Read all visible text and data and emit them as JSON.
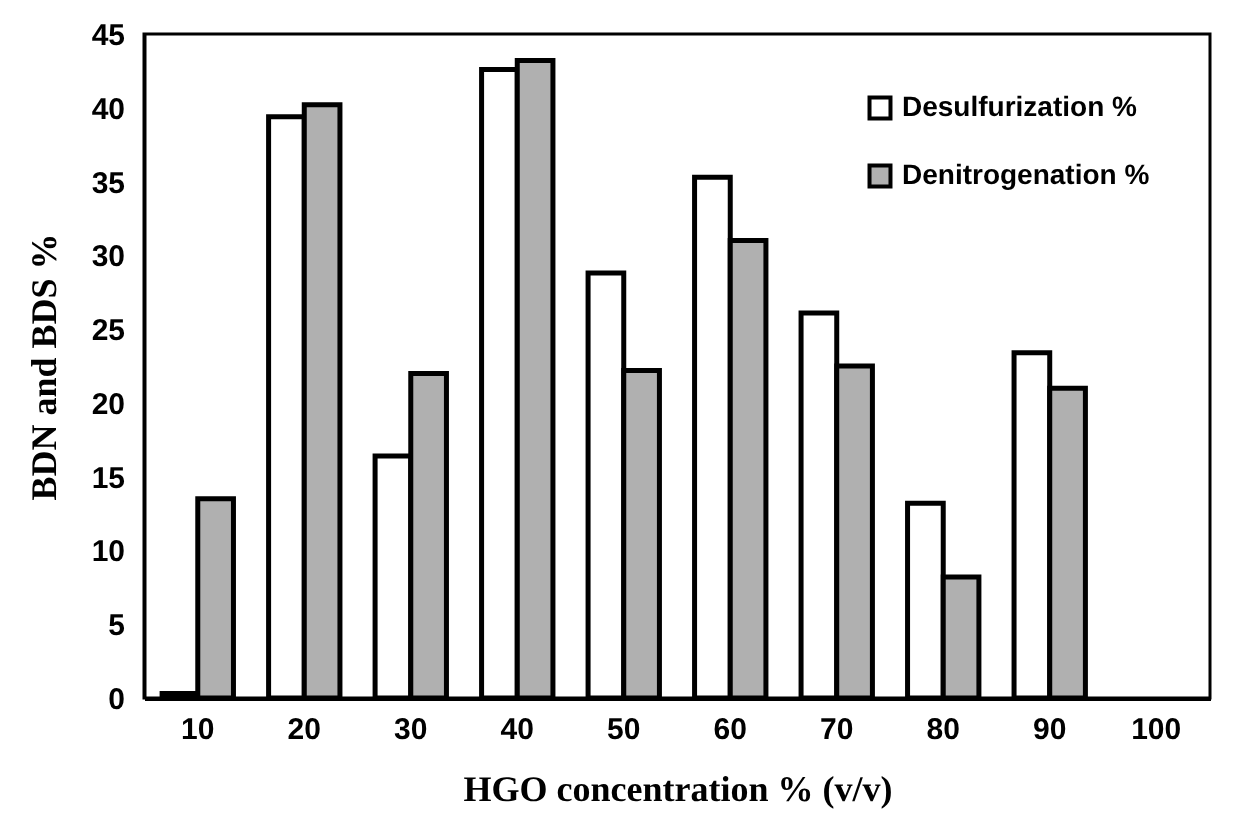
{
  "chart_data": {
    "type": "bar",
    "xlabel": "HGO concentration % (v/v)",
    "ylabel": "BDN and BDS %",
    "categories": [
      "10",
      "20",
      "30",
      "40",
      "50",
      "60",
      "70",
      "80",
      "90",
      "100"
    ],
    "series": [
      {
        "name": "Desulfurization %",
        "color": "#ffffff",
        "values": [
          0.3,
          39.4,
          16.4,
          42.6,
          28.8,
          35.3,
          26.1,
          13.2,
          23.4,
          null
        ]
      },
      {
        "name": "Denitrogenation %",
        "color": "#b0b0b0",
        "values": [
          13.5,
          40.2,
          22.0,
          43.2,
          22.2,
          31.0,
          22.5,
          8.2,
          21.0,
          null
        ]
      }
    ],
    "ylim": [
      0,
      45
    ],
    "yticks": [
      0,
      5,
      10,
      15,
      20,
      25,
      30,
      35,
      40,
      45
    ],
    "grid": false,
    "legend": "top right"
  }
}
